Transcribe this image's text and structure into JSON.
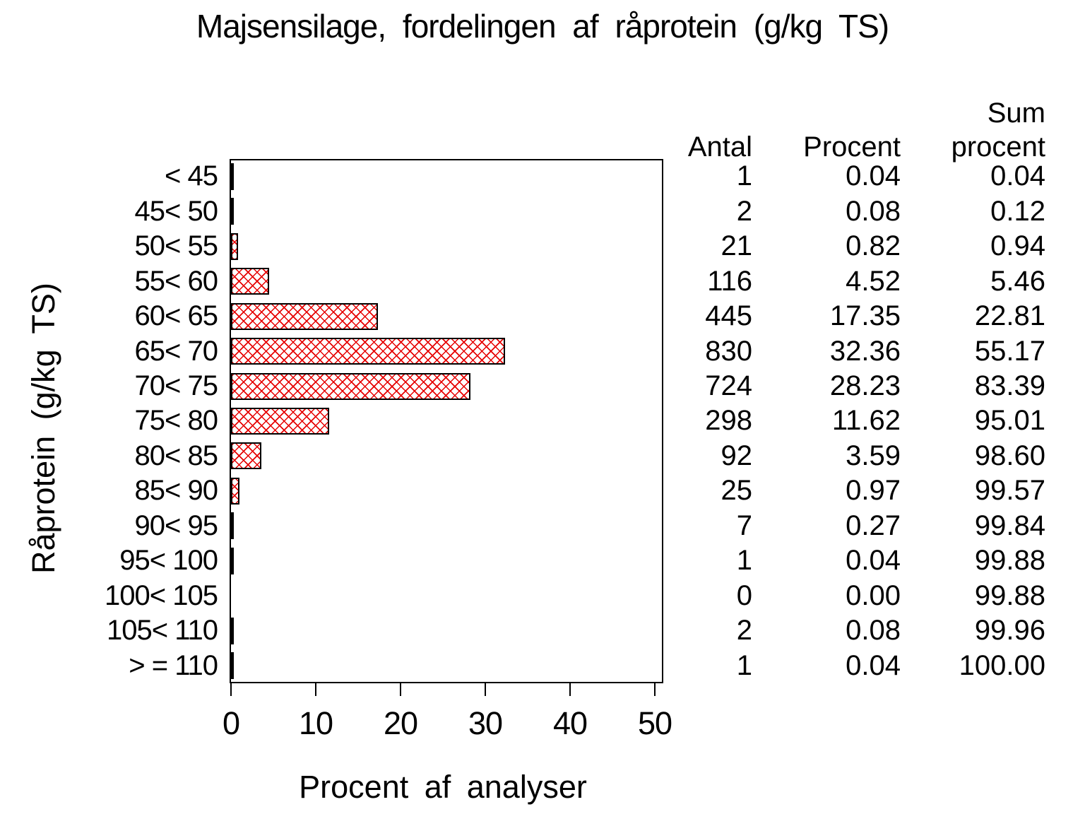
{
  "title": "Majsensilage, fordelingen af råprotein (g/kg TS)",
  "axes": {
    "x_label": "Procent af analyser",
    "y_label": "Råprotein (g/kg TS)"
  },
  "table_headers": {
    "sum_top": "Sum",
    "antal": "Antal",
    "procent": "Procent",
    "sum_bottom": "procent"
  },
  "chart_data": {
    "type": "bar",
    "orientation": "horizontal",
    "title": "Majsensilage, fordelingen af råprotein (g/kg TS)",
    "xlabel": "Procent af analyser",
    "ylabel": "Råprotein (g/kg TS)",
    "xlim": [
      0,
      51.2
    ],
    "x_ticks": [
      0,
      10,
      20,
      30,
      40,
      50
    ],
    "grid": false,
    "frame": true,
    "legend": "none",
    "bar_color": "#e60000",
    "bar_pattern": "crosshatch",
    "categories": [
      "< 45",
      "45< 50",
      "50< 55",
      "55< 60",
      "60< 65",
      "65< 70",
      "70< 75",
      "75< 80",
      "80< 85",
      "85< 90",
      "90< 95",
      "95< 100",
      "100< 105",
      "105< 110",
      "> = 110"
    ],
    "series": [
      {
        "name": "Antal",
        "values": [
          1,
          2,
          21,
          116,
          445,
          830,
          724,
          298,
          92,
          25,
          7,
          1,
          0,
          2,
          1
        ]
      },
      {
        "name": "Procent",
        "values": [
          0.04,
          0.08,
          0.82,
          4.52,
          17.35,
          32.36,
          28.23,
          11.62,
          3.59,
          0.97,
          0.27,
          0.04,
          0.0,
          0.08,
          0.04
        ]
      },
      {
        "name": "Sum procent",
        "values": [
          0.04,
          0.12,
          0.94,
          5.46,
          22.81,
          55.17,
          83.39,
          95.01,
          98.6,
          99.57,
          99.84,
          99.88,
          99.88,
          99.96,
          100.0
        ]
      }
    ],
    "rows": [
      {
        "category": "< 45",
        "antal": "1",
        "procent": "0.04",
        "sum_procent": "0.04",
        "value": 0.04
      },
      {
        "category": "45< 50",
        "antal": "2",
        "procent": "0.08",
        "sum_procent": "0.12",
        "value": 0.08
      },
      {
        "category": "50< 55",
        "antal": "21",
        "procent": "0.82",
        "sum_procent": "0.94",
        "value": 0.82
      },
      {
        "category": "55< 60",
        "antal": "116",
        "procent": "4.52",
        "sum_procent": "5.46",
        "value": 4.52
      },
      {
        "category": "60< 65",
        "antal": "445",
        "procent": "17.35",
        "sum_procent": "22.81",
        "value": 17.35
      },
      {
        "category": "65< 70",
        "antal": "830",
        "procent": "32.36",
        "sum_procent": "55.17",
        "value": 32.36
      },
      {
        "category": "70< 75",
        "antal": "724",
        "procent": "28.23",
        "sum_procent": "83.39",
        "value": 28.23
      },
      {
        "category": "75< 80",
        "antal": "298",
        "procent": "11.62",
        "sum_procent": "95.01",
        "value": 11.62
      },
      {
        "category": "80< 85",
        "antal": "92",
        "procent": "3.59",
        "sum_procent": "98.60",
        "value": 3.59
      },
      {
        "category": "85< 90",
        "antal": "25",
        "procent": "0.97",
        "sum_procent": "99.57",
        "value": 0.97
      },
      {
        "category": "90< 95",
        "antal": "7",
        "procent": "0.27",
        "sum_procent": "99.84",
        "value": 0.27
      },
      {
        "category": "95< 100",
        "antal": "1",
        "procent": "0.04",
        "sum_procent": "99.88",
        "value": 0.04
      },
      {
        "category": "100< 105",
        "antal": "0",
        "procent": "0.00",
        "sum_procent": "99.88",
        "value": 0.0
      },
      {
        "category": "105< 110",
        "antal": "2",
        "procent": "0.08",
        "sum_procent": "99.96",
        "value": 0.08
      },
      {
        "category": "> = 110",
        "antal": "1",
        "procent": "0.04",
        "sum_procent": "100.00",
        "value": 0.04
      }
    ]
  }
}
